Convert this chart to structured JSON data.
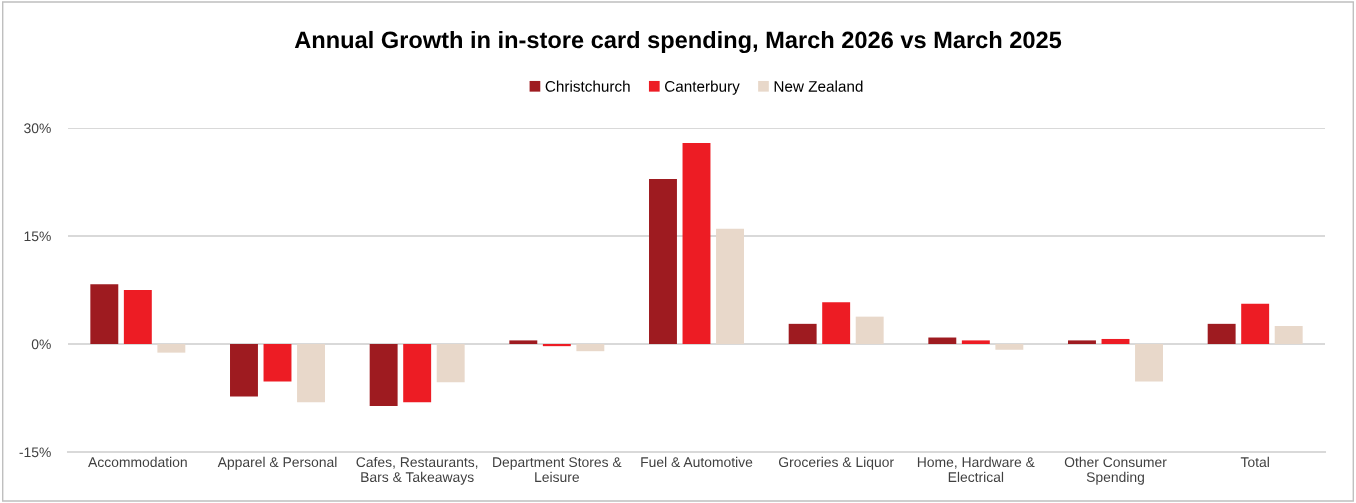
{
  "chart_data": {
    "type": "bar",
    "title": "Annual Growth in in-store card spending, March 2026 vs March 2025",
    "categories": [
      "Accommodation",
      "Apparel & Personal",
      "Cafes, Restaurants,\nBars & Takeaways",
      "Department Stores &\nLeisure",
      "Fuel & Automotive",
      "Groceries & Liquor",
      "Home, Hardware &\nElectrical",
      "Other Consumer\nSpending",
      "Total"
    ],
    "series": [
      {
        "name": "Christchurch",
        "color": "#9e1b20",
        "values": [
          8.3,
          -7.3,
          -8.6,
          0.5,
          22.9,
          2.8,
          0.9,
          0.5,
          2.8
        ]
      },
      {
        "name": "Canterbury",
        "color": "#ed1c24",
        "values": [
          7.5,
          -5.2,
          -8.1,
          -0.3,
          27.9,
          5.8,
          0.5,
          0.7,
          5.6
        ]
      },
      {
        "name": "New Zealand",
        "color": "#e8d8ca",
        "values": [
          -1.2,
          -8.1,
          -5.3,
          -1.0,
          16.0,
          3.8,
          -0.8,
          -5.2,
          2.5
        ]
      }
    ],
    "ylim": [
      -15,
      30
    ],
    "yticks": [
      {
        "value": -15,
        "label": "-15%"
      },
      {
        "value": 0,
        "label": "0%"
      },
      {
        "value": 15,
        "label": "15%"
      },
      {
        "value": 30,
        "label": "30%"
      }
    ],
    "grid": "y",
    "legend": "top"
  }
}
